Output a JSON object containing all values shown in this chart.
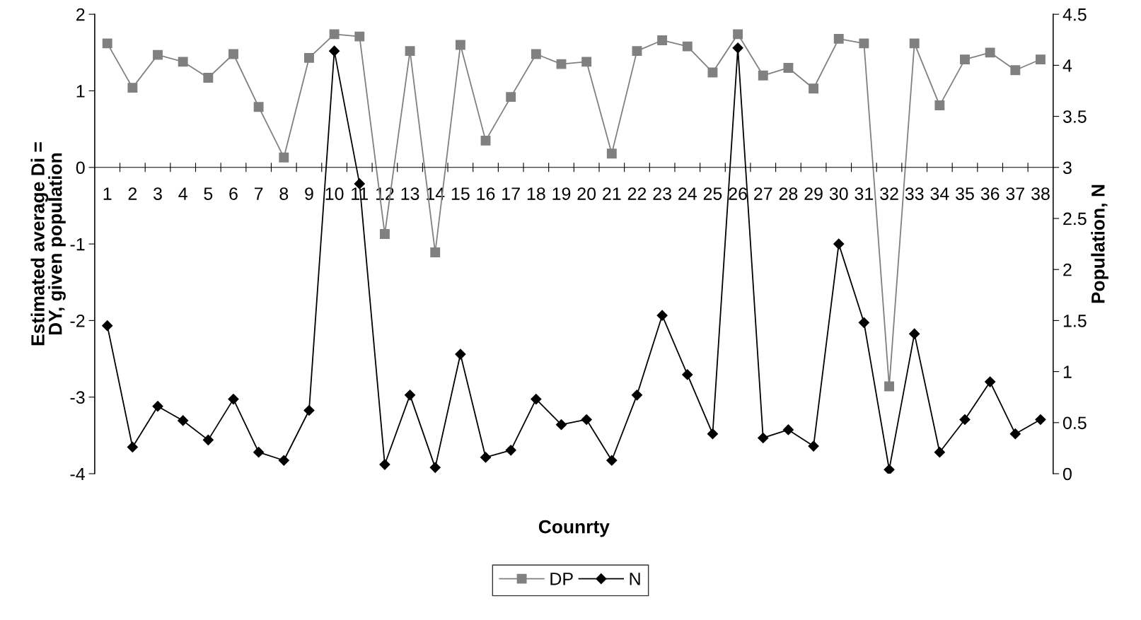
{
  "chart_data": {
    "type": "line",
    "categories": [
      "1",
      "2",
      "3",
      "4",
      "5",
      "6",
      "7",
      "8",
      "9",
      "10",
      "11",
      "12",
      "13",
      "14",
      "15",
      "16",
      "17",
      "18",
      "19",
      "20",
      "21",
      "22",
      "23",
      "24",
      "25",
      "26",
      "27",
      "28",
      "29",
      "30",
      "31",
      "32",
      "33",
      "34",
      "35",
      "36",
      "37",
      "38"
    ],
    "xlabel": "Counrty",
    "ylabel": "Estimated average Di =\nDY, given population",
    "y2label": "Population, N",
    "ylim": [
      -4,
      2
    ],
    "yticks": [
      -4,
      -3,
      -2,
      -1,
      0,
      1,
      2
    ],
    "y2lim": [
      0,
      4.5
    ],
    "y2ticks": [
      0,
      0.5,
      1,
      1.5,
      2,
      2.5,
      3,
      3.5,
      4,
      4.5
    ],
    "grid": false,
    "legend": "bottom",
    "series": [
      {
        "name": "DP",
        "color": "#808080",
        "marker": "square",
        "values": [
          1.62,
          1.04,
          1.47,
          1.38,
          1.17,
          1.48,
          0.79,
          0.13,
          1.43,
          1.74,
          1.71,
          -0.87,
          1.52,
          -1.11,
          1.6,
          0.35,
          0.92,
          1.48,
          1.35,
          1.38,
          0.18,
          1.52,
          1.66,
          1.58,
          1.24,
          1.74,
          1.2,
          1.3,
          1.03,
          1.68,
          1.62,
          -2.86,
          1.62,
          0.81,
          1.41,
          1.5,
          1.27,
          1.41
        ]
      },
      {
        "name": "N",
        "color": "#000000",
        "marker": "diamond",
        "axis": "y2",
        "values": [
          1.45,
          0.26,
          0.66,
          0.52,
          0.33,
          0.73,
          0.21,
          0.13,
          0.62,
          4.14,
          2.84,
          0.09,
          0.77,
          0.06,
          1.17,
          0.16,
          0.23,
          0.73,
          0.48,
          0.53,
          0.13,
          0.77,
          1.55,
          0.97,
          0.39,
          4.17,
          0.35,
          0.43,
          0.27,
          2.25,
          1.48,
          0.04,
          1.37,
          0.21,
          0.53,
          0.9,
          0.39,
          0.53
        ]
      }
    ]
  }
}
